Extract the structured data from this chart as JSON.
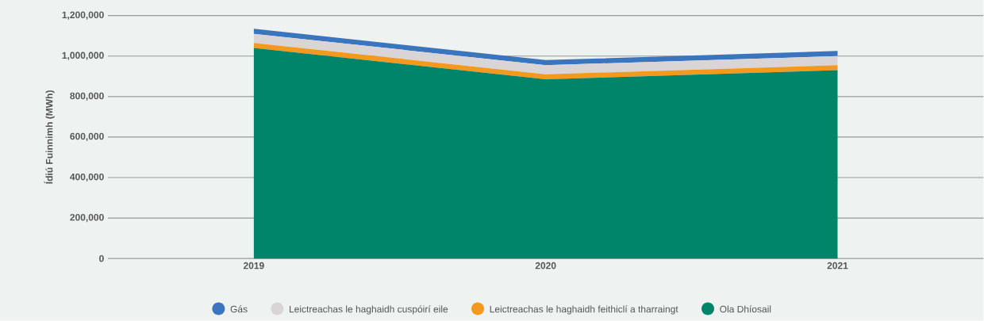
{
  "chart_data": {
    "type": "area",
    "stacked": true,
    "ylabel": "Ídiú Fuinnimh  (MWh)",
    "categories": [
      "2019",
      "2020",
      "2021"
    ],
    "series": [
      {
        "name": "Ola Dhíosail",
        "color": "#00856a",
        "values": [
          1040000,
          885000,
          930000
        ]
      },
      {
        "name": "Leictreachas le haghaidh feithiclí a tharraingt",
        "color": "#f39a1e",
        "values": [
          25000,
          25000,
          25000
        ]
      },
      {
        "name": "Leictreachas le haghaidh cuspóirí eile",
        "color": "#d9d5d6",
        "values": [
          45000,
          45000,
          45000
        ]
      },
      {
        "name": "Gás",
        "color": "#3a75bd",
        "values": [
          25000,
          25000,
          25000
        ]
      }
    ],
    "ylim": [
      0,
      1200000
    ],
    "yticks": [
      {
        "value": 0,
        "label": "0"
      },
      {
        "value": 200000,
        "label": "200,000"
      },
      {
        "value": 400000,
        "label": "400,000"
      },
      {
        "value": 600000,
        "label": "600,000"
      },
      {
        "value": 800000,
        "label": "800,000"
      },
      {
        "value": 1000000,
        "label": "1,000,000"
      },
      {
        "value": 1200000,
        "label": "1,200,000"
      }
    ],
    "grid": "y",
    "legend": "bottom"
  }
}
